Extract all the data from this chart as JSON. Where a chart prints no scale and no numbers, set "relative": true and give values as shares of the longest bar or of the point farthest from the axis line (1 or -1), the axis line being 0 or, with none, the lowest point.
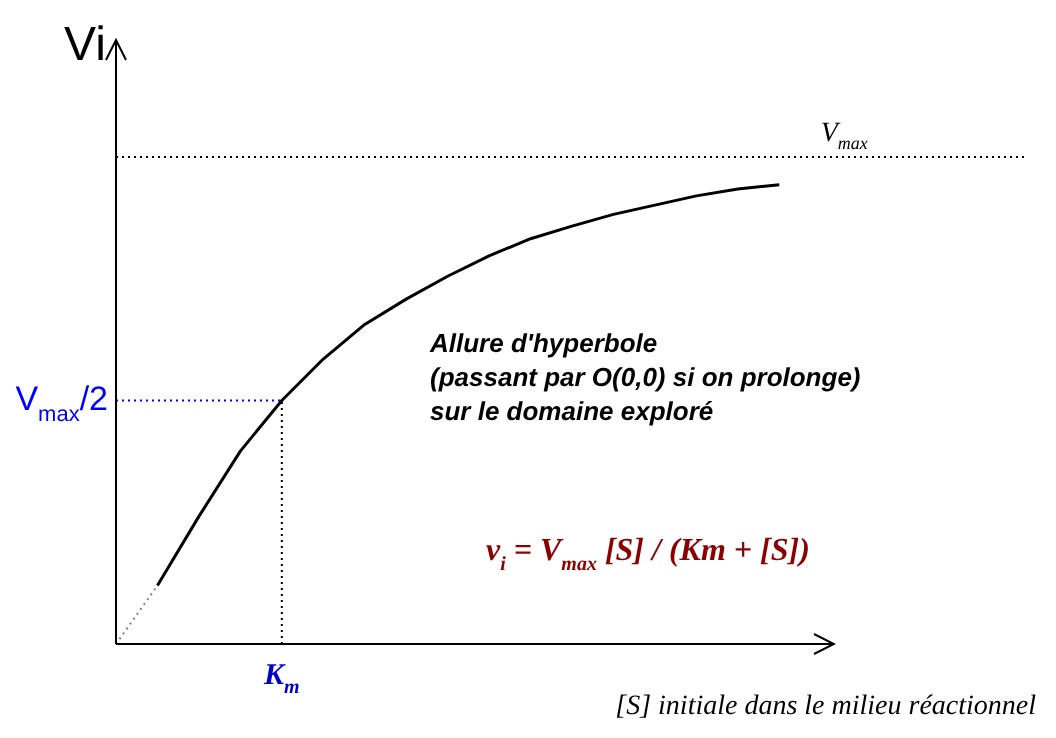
{
  "chart_data": {
    "type": "line",
    "relative": true,
    "ylabel": "Vi",
    "xlabel": "[S] initiale dans le milieu réactionnel",
    "categories": [
      null,
      null,
      null,
      null,
      null,
      null,
      null,
      null,
      null,
      null,
      null,
      null,
      null,
      null,
      null,
      null,
      null,
      null,
      null,
      null,
      null,
      null,
      null
    ],
    "series": [
      {
        "color": "#000000",
        "values": [
          null,
          0.12,
          0.262,
          0.396,
          0.5,
          0.585,
          0.656,
          0.708,
          0.755,
          0.797,
          0.832,
          0.858,
          0.882,
          0.901,
          0.92,
          0.934,
          0.943,
          null,
          null,
          null,
          null,
          null,
          null
        ]
      },
      {
        "type": "line",
        "color": "#808080",
        "line_style": "dotted",
        "values": [
          0,
          0.12,
          null,
          null,
          null,
          null,
          null,
          null,
          null,
          null,
          null,
          null,
          null,
          null,
          null,
          null,
          null,
          null,
          null,
          null,
          null,
          null,
          null
        ]
      },
      {
        "type": "line",
        "name": "V$_{max}$",
        "color": "#000000",
        "line_style": "dotted",
        "values": [
          1,
          1,
          1,
          1,
          1,
          1,
          1,
          1,
          1,
          1,
          1,
          1,
          1,
          1,
          1,
          1,
          1,
          1,
          1,
          1,
          1,
          1,
          1
        ]
      },
      {
        "type": "line",
        "name": "V$_{max}$/2",
        "color": "#0000ff",
        "line_style": "dotted",
        "values": [
          0.5,
          0.5,
          0.5,
          0.5,
          0.5,
          null,
          null,
          null,
          null,
          null,
          null,
          null,
          null,
          null,
          null,
          null,
          null,
          null,
          null,
          null,
          null,
          null,
          null
        ]
      }
    ],
    "annotations": [
      "K$_{m}$",
      "Allure d'hyperbole",
      "(passant par O(0,0) si on prolonge)",
      "sur le domaine exploré",
      "v$_{i}$ = V$_{max}$ [S] / (Km + [S])"
    ],
    "marker": "none",
    "line_style": "solid",
    "legend": false
  }
}
